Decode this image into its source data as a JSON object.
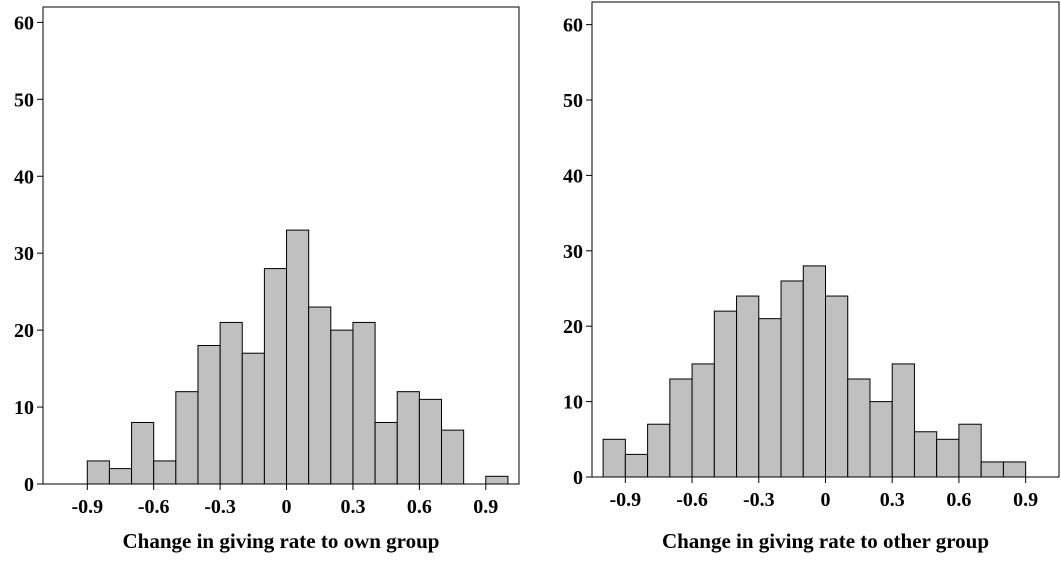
{
  "chart_data": [
    {
      "type": "bar",
      "subtype": "histogram",
      "xlabel": "Change in giving rate to  own group",
      "ylabel": "",
      "x_ticks": [
        "-0.9",
        "-0.6",
        "-0.3",
        "0",
        "0.3",
        "0.6",
        "0.9"
      ],
      "x_tick_values": [
        -0.9,
        -0.6,
        -0.3,
        0,
        0.3,
        0.6,
        0.9
      ],
      "y_ticks": [
        "0",
        "10",
        "20",
        "30",
        "40",
        "50",
        "60"
      ],
      "ylim": [
        0,
        62
      ],
      "xlim": [
        -1.1,
        1.05
      ],
      "bin_width": 0.1,
      "bin_starts": [
        -0.9,
        -0.8,
        -0.7,
        -0.6,
        -0.5,
        -0.4,
        -0.3,
        -0.2,
        -0.1,
        0.0,
        0.1,
        0.2,
        0.3,
        0.4,
        0.5,
        0.6,
        0.7,
        0.9
      ],
      "values": [
        3,
        2,
        8,
        3,
        12,
        18,
        21,
        17,
        28,
        33,
        23,
        20,
        21,
        8,
        12,
        11,
        7,
        1
      ],
      "bar_color": "#c0c0c0",
      "grid": false
    },
    {
      "type": "bar",
      "subtype": "histogram",
      "xlabel": "Change in giving rate to  other group",
      "ylabel": "",
      "x_ticks": [
        "-0.9",
        "-0.6",
        "-0.3",
        "0",
        "0.3",
        "0.6",
        "0.9"
      ],
      "x_tick_values": [
        -0.9,
        -0.6,
        -0.3,
        0,
        0.3,
        0.6,
        0.9
      ],
      "y_ticks": [
        "0",
        "10",
        "20",
        "30",
        "40",
        "50",
        "60"
      ],
      "ylim": [
        0,
        63
      ],
      "xlim": [
        -1.05,
        1.05
      ],
      "bin_width": 0.1,
      "bin_starts": [
        -1.0,
        -0.9,
        -0.8,
        -0.7,
        -0.6,
        -0.5,
        -0.4,
        -0.3,
        -0.2,
        -0.1,
        0.0,
        0.1,
        0.2,
        0.3,
        0.4,
        0.5,
        0.6,
        0.7,
        0.8
      ],
      "values": [
        5,
        3,
        7,
        13,
        15,
        22,
        24,
        21,
        26,
        28,
        24,
        13,
        10,
        15,
        6,
        5,
        7,
        2,
        2
      ],
      "bar_color": "#c0c0c0",
      "grid": false
    }
  ]
}
